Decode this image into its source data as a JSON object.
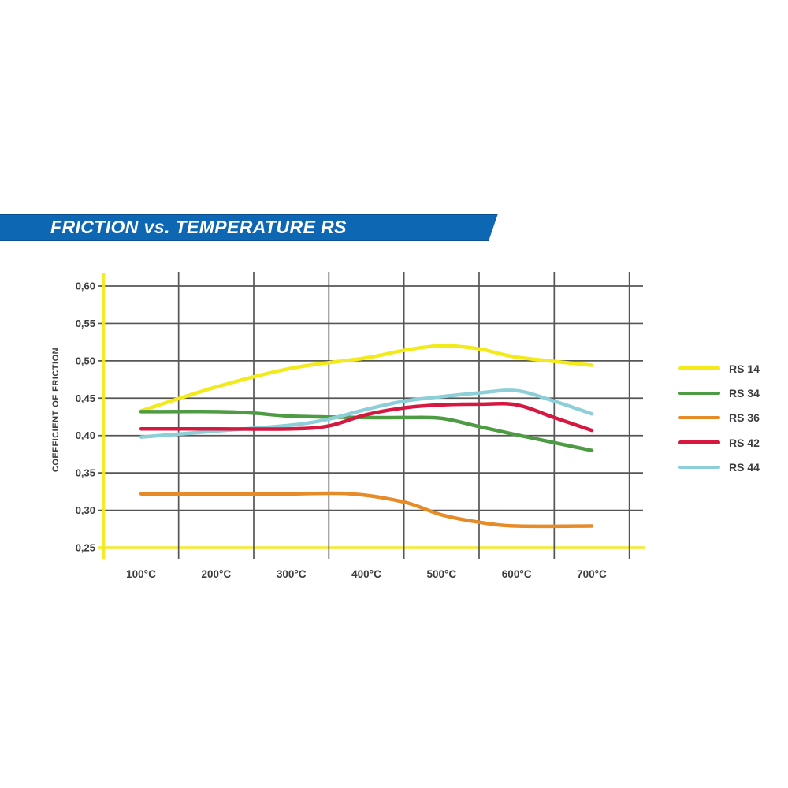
{
  "banner": {
    "title": "FRICTION vs. TEMPERATURE RS",
    "background_color": "#0e67b2",
    "text_color": "#ffffff"
  },
  "chart_data": {
    "type": "line",
    "title": "FRICTION vs. TEMPERATURE RS",
    "xlabel": "",
    "ylabel": "COEFFICIENT OF FRICTION",
    "x_unit": "°C",
    "xlim": [
      50,
      770
    ],
    "ylim": [
      0.25,
      0.6
    ],
    "grid": true,
    "legend_position": "right",
    "axis_color": "#f2ea1b",
    "grid_color": "#565656",
    "label_color": "#3c3c3c",
    "x_ticks": [
      100,
      200,
      300,
      400,
      500,
      600,
      700
    ],
    "x_tick_labels": [
      "100°C",
      "200°C",
      "300°C",
      "400°C",
      "500°C",
      "600°C",
      "700°C"
    ],
    "y_ticks": [
      0.6,
      0.55,
      0.5,
      0.45,
      0.4,
      0.35,
      0.3,
      0.25
    ],
    "y_tick_labels": [
      "0,60",
      "0,55",
      "0,50",
      "0,45",
      "0,40",
      "0,35",
      "0,30",
      "0,25"
    ],
    "series": [
      {
        "name": "RS 14",
        "color": "#f2ea1b",
        "points": [
          [
            100,
            0.433
          ],
          [
            200,
            0.465
          ],
          [
            300,
            0.49
          ],
          [
            400,
            0.504
          ],
          [
            450,
            0.514
          ],
          [
            500,
            0.52
          ],
          [
            550,
            0.516
          ],
          [
            600,
            0.505
          ],
          [
            700,
            0.494
          ]
        ]
      },
      {
        "name": "RS 34",
        "color": "#4d9b43",
        "points": [
          [
            100,
            0.432
          ],
          [
            200,
            0.432
          ],
          [
            250,
            0.43
          ],
          [
            300,
            0.426
          ],
          [
            400,
            0.424
          ],
          [
            450,
            0.424
          ],
          [
            500,
            0.423
          ],
          [
            550,
            0.412
          ],
          [
            600,
            0.401
          ],
          [
            700,
            0.38
          ]
        ]
      },
      {
        "name": "RS 36",
        "color": "#e78b27",
        "points": [
          [
            100,
            0.322
          ],
          [
            200,
            0.322
          ],
          [
            300,
            0.322
          ],
          [
            380,
            0.322
          ],
          [
            450,
            0.311
          ],
          [
            500,
            0.294
          ],
          [
            550,
            0.284
          ],
          [
            600,
            0.279
          ],
          [
            700,
            0.279
          ]
        ]
      },
      {
        "name": "RS 42",
        "color": "#d6173f",
        "points": [
          [
            100,
            0.409
          ],
          [
            200,
            0.409
          ],
          [
            300,
            0.409
          ],
          [
            350,
            0.413
          ],
          [
            400,
            0.428
          ],
          [
            450,
            0.437
          ],
          [
            500,
            0.441
          ],
          [
            550,
            0.442
          ],
          [
            600,
            0.441
          ],
          [
            650,
            0.424
          ],
          [
            700,
            0.407
          ]
        ]
      },
      {
        "name": "RS 44",
        "color": "#8ccfd9",
        "points": [
          [
            100,
            0.398
          ],
          [
            200,
            0.406
          ],
          [
            300,
            0.414
          ],
          [
            350,
            0.422
          ],
          [
            400,
            0.435
          ],
          [
            450,
            0.446
          ],
          [
            500,
            0.452
          ],
          [
            550,
            0.457
          ],
          [
            600,
            0.46
          ],
          [
            650,
            0.446
          ],
          [
            700,
            0.429
          ]
        ]
      }
    ],
    "draw_order": [
      "RS 14",
      "RS 34",
      "RS 36",
      "RS 44",
      "RS 42"
    ]
  },
  "legend": {
    "items": [
      {
        "label": "RS 14",
        "color": "#f2ea1b"
      },
      {
        "label": "RS 34",
        "color": "#4d9b43"
      },
      {
        "label": "RS 36",
        "color": "#e78b27"
      },
      {
        "label": "RS 42",
        "color": "#d6173f"
      },
      {
        "label": "RS 44",
        "color": "#8ccfd9"
      }
    ]
  }
}
